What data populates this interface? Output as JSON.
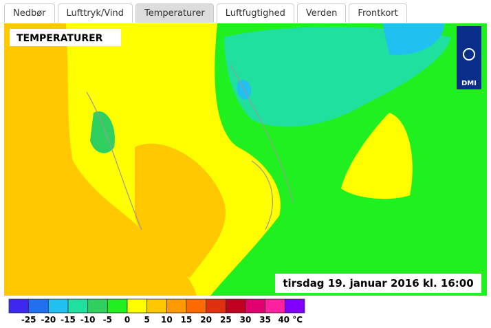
{
  "tabs": [
    "Nedbør",
    "Lufttryk/Vind",
    "Temperaturer",
    "Luftfugtighed",
    "Verden",
    "Frontkort"
  ],
  "active_tab": 2,
  "map": {
    "title": "TEMPERATURER",
    "timestamp": "tirsdag 19. januar 2016 kl. 16:00",
    "logo": "DMI"
  },
  "legend": {
    "colors": [
      "#3c28f0",
      "#2070f0",
      "#20c0f0",
      "#20e0a0",
      "#30d060",
      "#20f020",
      "#ffff00",
      "#ffc800",
      "#ff9900",
      "#ff6a00",
      "#e03010",
      "#c00020",
      "#e00070",
      "#ff20a0",
      "#8000ff"
    ],
    "labels": [
      "-25",
      "-20",
      "-15",
      "-10",
      "-5",
      "0",
      "5",
      "10",
      "15",
      "20",
      "25",
      "30",
      "35",
      "40 °C"
    ]
  }
}
